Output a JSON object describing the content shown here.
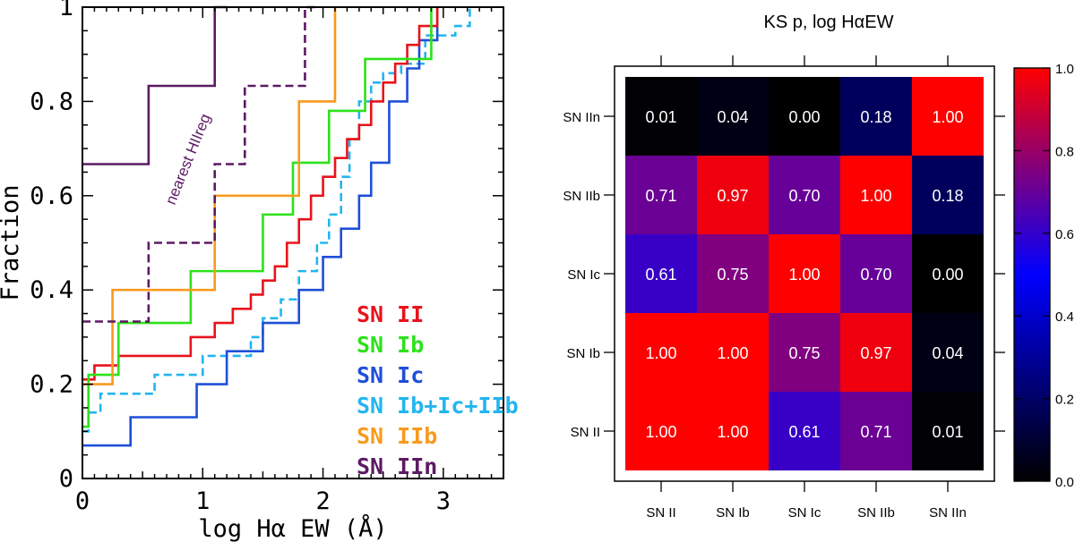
{
  "chart_data": [
    {
      "type": "line",
      "subtype": "cumulative-step",
      "xlabel": "log Hα EW (Å)",
      "ylabel": "Fraction",
      "xlim": [
        0,
        3.5
      ],
      "ylim": [
        0,
        1
      ],
      "xticks": [
        0,
        1,
        2,
        3
      ],
      "yticks": [
        0,
        0.2,
        0.4,
        0.6,
        0.8,
        1
      ],
      "ytick_labels": [
        "0",
        "0.2",
        "0.4",
        "0.6",
        "0.8",
        "1"
      ],
      "annotation": "nearest HIIreg",
      "legend_location": "lower-right",
      "series": [
        {
          "name": "SN Ib+Ic+IIb",
          "legend_label": "SN  Ib+Ic+IIb",
          "color": "#22b5f0",
          "dashed": true,
          "x": [
            0,
            0.05,
            0.15,
            0.6,
            1.0,
            1.4,
            1.5,
            1.65,
            1.8,
            1.95,
            2.05,
            2.15,
            2.22,
            2.3,
            2.4,
            2.5,
            2.65,
            2.85,
            3.1,
            3.22
          ],
          "y": [
            0.1,
            0.14,
            0.18,
            0.22,
            0.26,
            0.3,
            0.34,
            0.38,
            0.44,
            0.5,
            0.56,
            0.64,
            0.72,
            0.8,
            0.84,
            0.86,
            0.88,
            0.94,
            0.96,
            1.0
          ]
        },
        {
          "name": "SN Ic",
          "legend_label": "SN  Ic",
          "color": "#1e4fd8",
          "x": [
            0,
            0.4,
            0.95,
            1.2,
            1.5,
            1.8,
            2.0,
            2.15,
            2.3,
            2.4,
            2.55,
            2.7,
            2.8,
            2.95
          ],
          "y": [
            0.07,
            0.13,
            0.2,
            0.27,
            0.33,
            0.4,
            0.47,
            0.53,
            0.6,
            0.67,
            0.8,
            0.87,
            0.93,
            1.0
          ]
        },
        {
          "name": "SN II",
          "legend_label": "SN  II",
          "color": "#e8131b",
          "x": [
            0,
            0.1,
            0.3,
            0.9,
            1.1,
            1.25,
            1.4,
            1.5,
            1.6,
            1.7,
            1.8,
            1.9,
            2.0,
            2.1,
            2.2,
            2.3,
            2.4,
            2.5,
            2.6,
            2.7,
            2.8,
            2.95
          ],
          "y": [
            0.21,
            0.24,
            0.26,
            0.3,
            0.33,
            0.36,
            0.39,
            0.42,
            0.45,
            0.5,
            0.55,
            0.6,
            0.64,
            0.68,
            0.72,
            0.75,
            0.8,
            0.84,
            0.88,
            0.92,
            0.96,
            1.0
          ]
        },
        {
          "name": "SN Ib",
          "legend_label": "SN  Ib",
          "color": "#2de11b",
          "x": [
            0,
            0.05,
            0.3,
            0.9,
            1.5,
            1.75,
            2.05,
            2.35,
            2.85,
            2.9
          ],
          "y": [
            0.11,
            0.22,
            0.33,
            0.44,
            0.56,
            0.67,
            0.78,
            0.89,
            0.89,
            1.0
          ]
        },
        {
          "name": "SN IIb",
          "legend_label": "SN  IIb",
          "color": "#f89a1e",
          "x": [
            0,
            0.05,
            0.25,
            1.1,
            1.8,
            2.1
          ],
          "y": [
            0.2,
            0.2,
            0.4,
            0.6,
            0.8,
            1.0
          ]
        },
        {
          "name": "nearest HIIreg",
          "color": "#5b1a63",
          "dashed": true,
          "x": [
            0,
            0.55,
            1.1,
            1.35,
            1.85,
            1.95
          ],
          "y": [
            0.333,
            0.5,
            0.667,
            0.833,
            1.0,
            1.0
          ]
        },
        {
          "name": "SN IIn",
          "legend_label": "SN  IIn",
          "color": "#5b1a63",
          "x": [
            0,
            0.55,
            1.1,
            1.2
          ],
          "y": [
            0.667,
            0.833,
            1.0,
            1.0
          ]
        }
      ]
    },
    {
      "type": "heatmap",
      "title": "KS p, log HαEW",
      "row_labels": [
        "SN IIn",
        "SN IIb",
        "SN Ic",
        "SN Ib",
        "SN II"
      ],
      "col_labels": [
        "SN II",
        "SN Ib",
        "SN Ic",
        "SN IIb",
        "SN IIn"
      ],
      "values": [
        [
          "0.01",
          "0.04",
          "0.00",
          "0.18",
          "1.00"
        ],
        [
          "0.71",
          "0.97",
          "0.70",
          "1.00",
          "0.18"
        ],
        [
          "0.61",
          "0.75",
          "1.00",
          "0.70",
          "0.00"
        ],
        [
          "1.00",
          "1.00",
          "0.75",
          "0.97",
          "0.04"
        ],
        [
          "1.00",
          "1.00",
          "0.61",
          "0.71",
          "0.01"
        ]
      ],
      "colorbar_range": [
        0,
        1
      ],
      "colorbar_ticks": [
        "0.0",
        "0.2",
        "0.4",
        "0.6",
        "0.8",
        "1.0"
      ],
      "colormap": [
        "#000000",
        "#0000ff",
        "#ff0000"
      ]
    }
  ]
}
